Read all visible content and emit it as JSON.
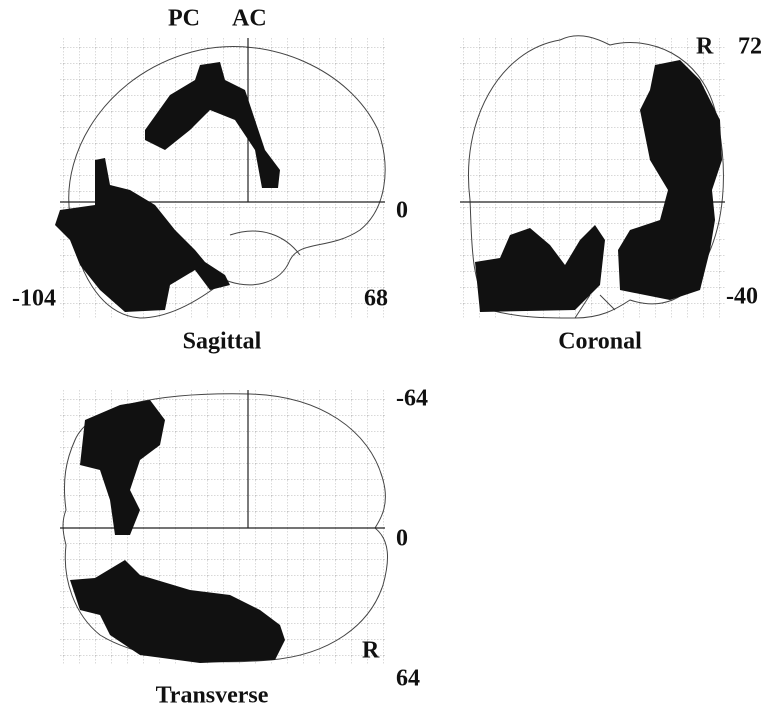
{
  "sagittal": {
    "title": "Sagittal",
    "pc": "PC",
    "ac": "AC",
    "zero": "0",
    "left": "-104",
    "right": "68"
  },
  "coronal": {
    "title": "Coronal",
    "side": "R",
    "top": "72",
    "bottom": "-40"
  },
  "transverse": {
    "title": "Transverse",
    "top": "-64",
    "zero": "0",
    "side": "R",
    "bottom": "64"
  }
}
